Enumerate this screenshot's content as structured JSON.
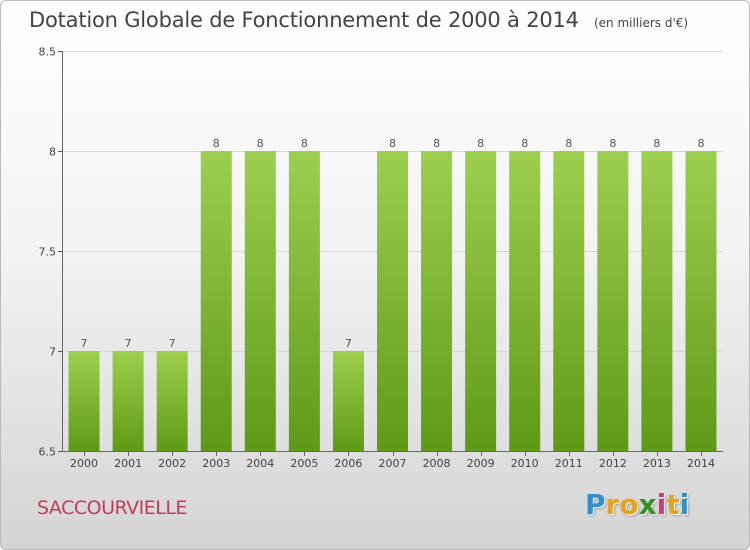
{
  "header": {
    "title": "Dotation Globale de Fonctionnement de 2000 à 2014",
    "unit": "(en milliers d'€)"
  },
  "footer": {
    "commune": "SACCOURVIELLE",
    "logo_letters": [
      "P",
      "r",
      "o",
      "x",
      "i",
      "t",
      "i"
    ],
    "logo_colors": [
      "#2f8fcf",
      "#e8a21c",
      "#e8a21c",
      "#3a8f2b",
      "#d8347f",
      "#e8a21c",
      "#2f8fcf"
    ]
  },
  "chart_data": {
    "type": "bar",
    "title": "Dotation Globale de Fonctionnement de 2000 à 2014",
    "categories": [
      "2000",
      "2001",
      "2002",
      "2003",
      "2004",
      "2005",
      "2006",
      "2007",
      "2008",
      "2009",
      "2010",
      "2011",
      "2012",
      "2013",
      "2014"
    ],
    "values": [
      7,
      7,
      7,
      8,
      8,
      8,
      7,
      8,
      8,
      8,
      8,
      8,
      8,
      8,
      8
    ],
    "data_labels": [
      "7",
      "7",
      "7",
      "8",
      "8",
      "8",
      "7",
      "8",
      "8",
      "8",
      "8",
      "8",
      "8",
      "8",
      "8"
    ],
    "ylim": [
      6.5,
      8.5
    ],
    "yticks": [
      6.5,
      7,
      7.5,
      8,
      8.5
    ],
    "ytick_labels": [
      "6.5",
      "7",
      "7.5",
      "8",
      "8.5"
    ],
    "grid": true,
    "bar_color_top": "#9ccf4d",
    "bar_color_bottom": "#5e9a15"
  }
}
